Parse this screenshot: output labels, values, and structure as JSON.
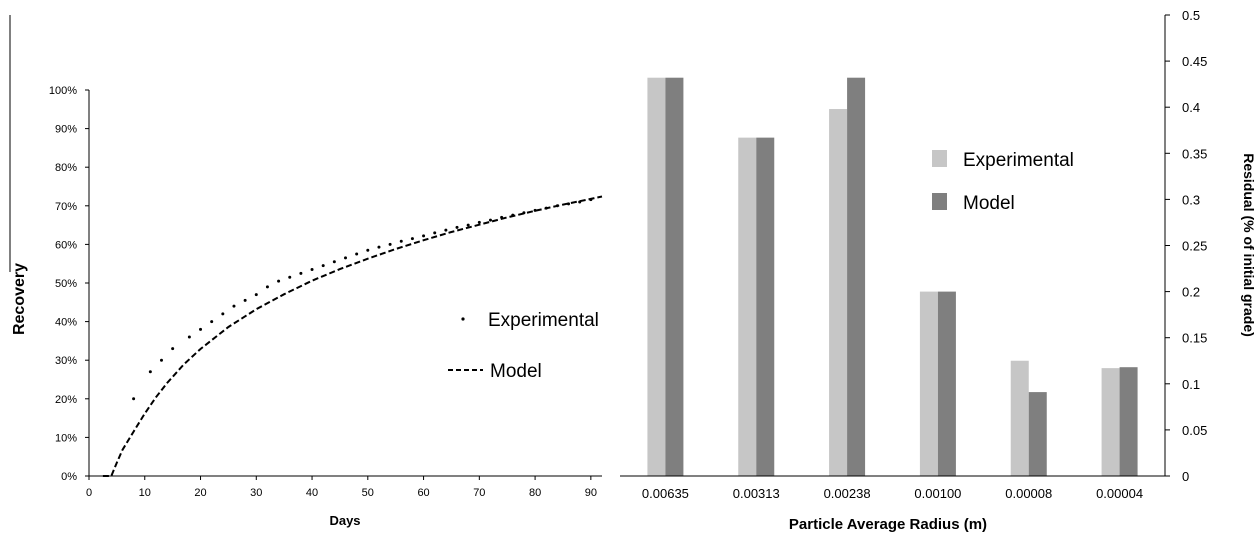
{
  "chart_data": [
    {
      "type": "line",
      "xlabel": "Days",
      "ylabel": "Recovery",
      "xlim": [
        0,
        92
      ],
      "ylim": [
        0,
        100
      ],
      "x_ticks": [
        "0",
        "10",
        "20",
        "30",
        "40",
        "50",
        "60",
        "70",
        "80",
        "90"
      ],
      "y_ticks": [
        "0%",
        "10%",
        "20%",
        "30%",
        "40%",
        "50%",
        "60%",
        "70%",
        "80%",
        "90%",
        "100%"
      ],
      "legend": [
        "Experimental",
        "Model"
      ],
      "legend_position": "middle-right",
      "grid": false,
      "series": [
        {
          "name": "Experimental",
          "style": "points",
          "x": [
            8,
            11,
            13,
            15,
            18,
            20,
            22,
            24,
            26,
            28,
            30,
            32,
            34,
            36,
            38,
            40,
            42,
            44,
            46,
            48,
            50,
            52,
            54,
            56,
            58,
            60,
            62,
            64,
            66,
            68,
            70,
            72,
            74,
            76,
            78,
            80,
            82,
            84,
            86,
            88,
            90
          ],
          "y": [
            20,
            27,
            30,
            33,
            36,
            38,
            40,
            42,
            44,
            45.5,
            47,
            49,
            50.5,
            51.5,
            52.5,
            53.5,
            54.5,
            55.5,
            56.5,
            57.5,
            58.5,
            59.3,
            60,
            60.8,
            61.5,
            62.2,
            63,
            63.7,
            64.4,
            65,
            65.7,
            66.3,
            67,
            67.6,
            68.2,
            68.8,
            69.4,
            70,
            70.5,
            71,
            71.6
          ]
        },
        {
          "name": "Model",
          "style": "dashed",
          "x": [
            2.5,
            4,
            5,
            6,
            8,
            10,
            12,
            14,
            17,
            20,
            25,
            30,
            35,
            40,
            45,
            50,
            55,
            60,
            65,
            70,
            75,
            80,
            85,
            90,
            92
          ],
          "y": [
            0,
            0,
            3.5,
            6.8,
            11.5,
            16.2,
            20.4,
            24.1,
            28.9,
            32.9,
            38.6,
            43.2,
            47.1,
            50.6,
            53.6,
            56.3,
            58.8,
            61.1,
            63.2,
            65.1,
            67,
            68.7,
            70.3,
            71.8,
            72.4
          ]
        }
      ]
    },
    {
      "type": "bar",
      "xlabel": "Particle Average Radius (m)",
      "ylabel": "Residual (% of initial grade)",
      "ylim": [
        0,
        0.5
      ],
      "y_axis_position": "right",
      "y_ticks": [
        "0",
        "0.05",
        "0.1",
        "0.15",
        "0.2",
        "0.25",
        "0.3",
        "0.35",
        "0.4",
        "0.45",
        "0.5"
      ],
      "categories": [
        "0.00635",
        "0.00313",
        "0.00238",
        "0.00100",
        "0.00008",
        "0.00004"
      ],
      "legend": [
        "Experimental",
        "Model"
      ],
      "legend_position": "top-right",
      "colors": {
        "Experimental": "#c6c6c6",
        "Model": "#7f7f7f"
      },
      "grid": false,
      "series": [
        {
          "name": "Experimental",
          "values": [
            0.432,
            0.367,
            0.398,
            0.2,
            0.125,
            0.117
          ]
        },
        {
          "name": "Model",
          "values": [
            0.432,
            0.367,
            0.432,
            0.2,
            0.091,
            0.118
          ]
        }
      ]
    }
  ]
}
